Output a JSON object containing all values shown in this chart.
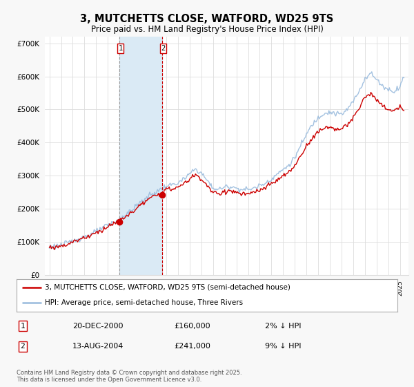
{
  "title": "3, MUTCHETTS CLOSE, WATFORD, WD25 9TS",
  "subtitle": "Price paid vs. HM Land Registry's House Price Index (HPI)",
  "background_color": "#f8f8f8",
  "plot_background_color": "#ffffff",
  "hpi_color": "#99bbdd",
  "price_color": "#cc0000",
  "ylim": [
    0,
    720000
  ],
  "yticks": [
    0,
    100000,
    200000,
    300000,
    400000,
    500000,
    600000,
    700000
  ],
  "ytick_labels": [
    "£0",
    "£100K",
    "£200K",
    "£300K",
    "£400K",
    "£500K",
    "£600K",
    "£700K"
  ],
  "xlim_start": 1994.6,
  "xlim_end": 2025.7,
  "purchase1_date": 2000.97,
  "purchase1_price": 160000,
  "purchase2_date": 2004.62,
  "purchase2_price": 241000,
  "purchase1_date_str": "20-DEC-2000",
  "purchase2_date_str": "13-AUG-2004",
  "purchase1_pct": "2% ↓ HPI",
  "purchase2_pct": "9% ↓ HPI",
  "legend_line1": "3, MUTCHETTS CLOSE, WATFORD, WD25 9TS (semi-detached house)",
  "legend_line2": "HPI: Average price, semi-detached house, Three Rivers",
  "footer": "Contains HM Land Registry data © Crown copyright and database right 2025.\nThis data is licensed under the Open Government Licence v3.0.",
  "shade_color": "#daeaf5",
  "vline1_color": "#999999",
  "vline2_color": "#cc0000",
  "grid_color": "#dddddd"
}
